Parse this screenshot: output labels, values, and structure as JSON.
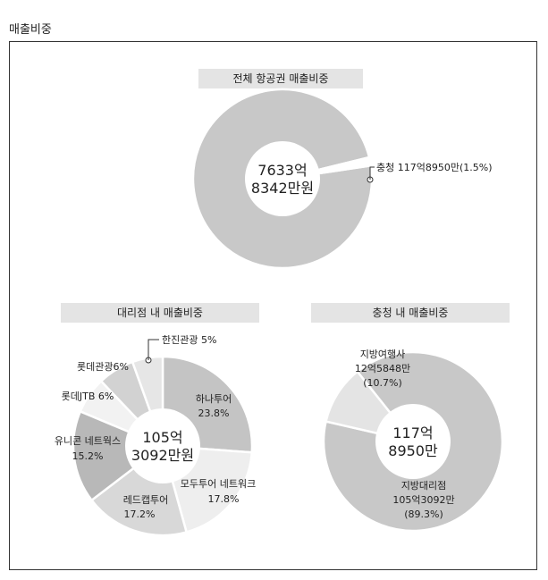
{
  "page_title": "매출비중",
  "chart_data": [
    {
      "type": "pie",
      "title": "전체 항공권 매출비중",
      "center_label": [
        "7633억",
        "8342만원"
      ],
      "slices": [
        {
          "label": "",
          "value": 98.5,
          "color": "#c8c8c8"
        },
        {
          "label": "충청 117억8950만(1.5%)",
          "value": 1.5,
          "color": "#ffffff"
        }
      ]
    },
    {
      "type": "pie",
      "title": "대리점 내 매출비중",
      "center_label": [
        "105억",
        "3092만원"
      ],
      "slices": [
        {
          "label": "하나투어",
          "pct_text": "23.8%",
          "value": 23.8,
          "color": "#c4c4c4"
        },
        {
          "label": "모두투어 네트워크",
          "pct_text": "17.8%",
          "value": 17.8,
          "color": "#eeeeee"
        },
        {
          "label": "레드캡투어",
          "pct_text": "17.2%",
          "value": 17.2,
          "color": "#d8d8d8"
        },
        {
          "label": "유니콘 네트웍스",
          "pct_text": "15.2%",
          "value": 15.2,
          "color": "#b8b8b8"
        },
        {
          "label": "롯데JTB 6%",
          "pct_text": "",
          "value": 6,
          "color": "#f2f2f2"
        },
        {
          "label": "롯데관광6%",
          "pct_text": "",
          "value": 6,
          "color": "#d2d2d2"
        },
        {
          "label": "한진관광 5%",
          "pct_text": "",
          "value": 5,
          "color": "#e6e6e6"
        }
      ]
    },
    {
      "type": "pie",
      "title": "충청 내 매출비중",
      "center_label": [
        "117억",
        "8950만"
      ],
      "slices": [
        {
          "label": "지방대리점",
          "value_text": "105억3092만",
          "pct_text": "(89.3%)",
          "value": 89.3,
          "color": "#c8c8c8"
        },
        {
          "label": "지방여행사",
          "value_text": "12억5848만",
          "pct_text": "(10.7%)",
          "value": 10.7,
          "color": "#e4e4e4"
        }
      ]
    }
  ]
}
